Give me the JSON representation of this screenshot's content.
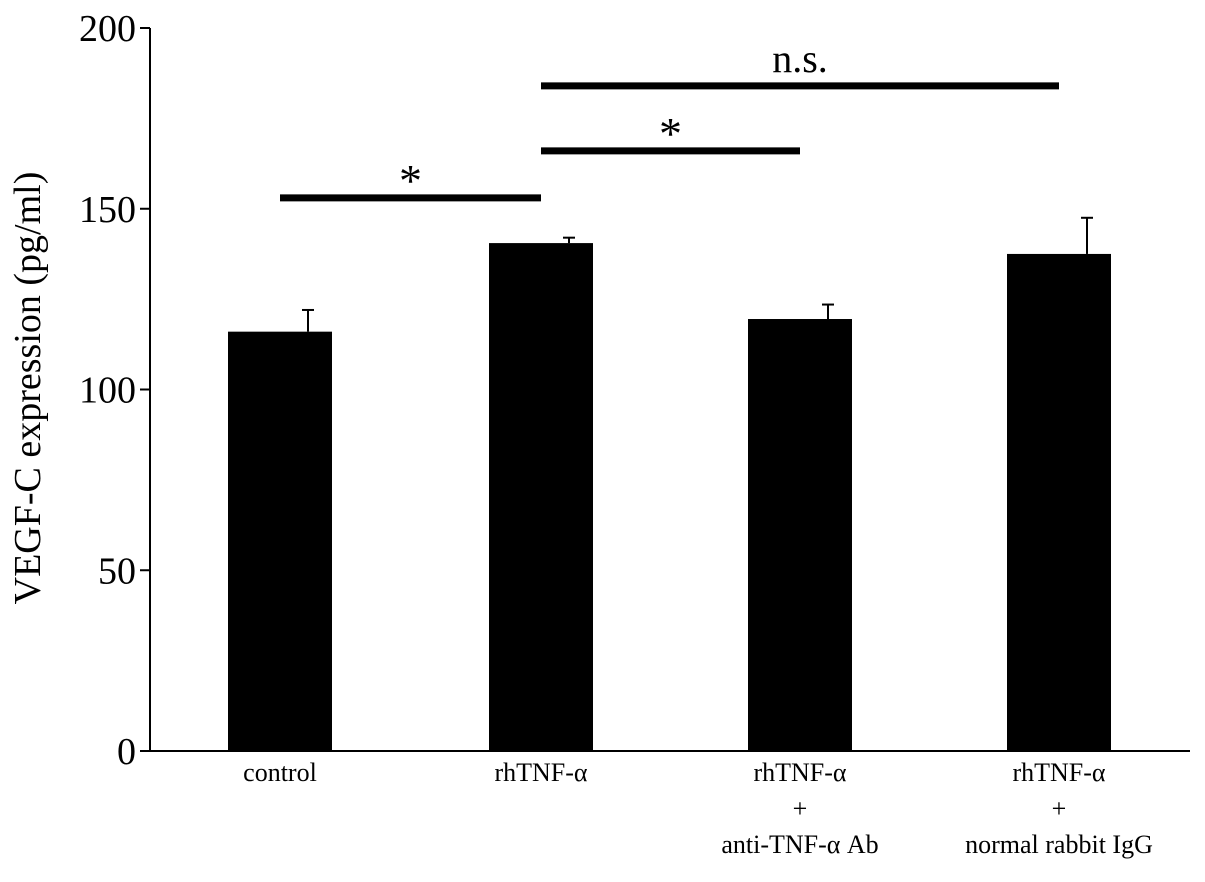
{
  "chart_data": {
    "type": "bar",
    "title": "",
    "xlabel": "",
    "ylabel": "VEGF-C expression (pg/ml)",
    "ylim": [
      0,
      200
    ],
    "yticks": [
      0,
      50,
      100,
      150,
      200
    ],
    "ytick_labels": [
      "0",
      "50",
      "100",
      "150",
      "200"
    ],
    "grid": false,
    "legend": "none",
    "bar_color": "#000000",
    "categories": [
      {
        "lines": [
          "control"
        ]
      },
      {
        "lines": [
          "rhTNF-α"
        ]
      },
      {
        "lines": [
          "rhTNF-α",
          "+",
          "anti-TNF-α Ab"
        ]
      },
      {
        "lines": [
          "rhTNF-α",
          "+",
          "normal rabbit IgG"
        ]
      }
    ],
    "values": [
      116,
      140.5,
      119.5,
      137.5
    ],
    "errors": [
      6,
      1.5,
      4,
      10
    ],
    "significance": [
      {
        "from": 0,
        "to": 1,
        "label": "*",
        "y": 153
      },
      {
        "from": 1,
        "to": 2,
        "label": "*",
        "y": 166
      },
      {
        "from": 1,
        "to": 3,
        "label": "n.s.",
        "y": 184
      }
    ]
  }
}
